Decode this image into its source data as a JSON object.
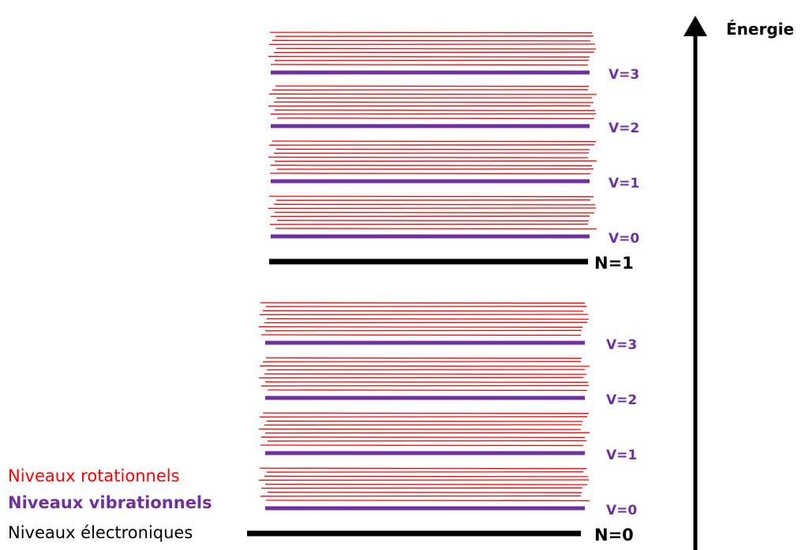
{
  "colors": {
    "rotational": "#ff0000",
    "vibrational": "#7030a0",
    "electronic": "#000000"
  },
  "energy_axis": {
    "label": "Énergie"
  },
  "legend": {
    "rotational": "Niveaux rotationnels",
    "vibrational": "Niveaux vibrationnels",
    "electronic": "Niveaux électroniques"
  },
  "electronic_levels": [
    {
      "label": "N=0",
      "vibrational_levels": [
        "V=0",
        "V=1",
        "V=2",
        "V=3"
      ]
    },
    {
      "label": "N=1",
      "vibrational_levels": [
        "V=0",
        "V=1",
        "V=2",
        "V=3"
      ]
    }
  ]
}
